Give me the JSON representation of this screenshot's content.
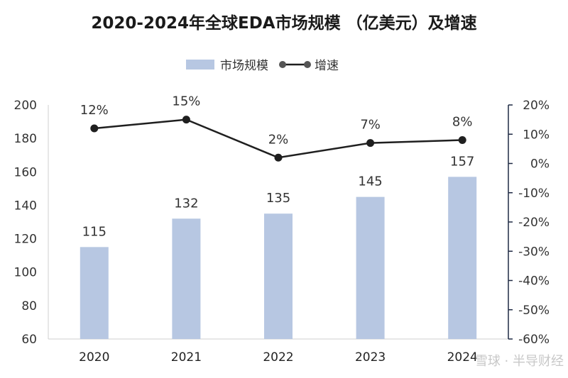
{
  "chart_data": {
    "type": "bar",
    "title": "2020-2024年全球EDA市场规模 （亿美元）及增速",
    "categories": [
      "2020",
      "2021",
      "2022",
      "2023",
      "2024"
    ],
    "series": [
      {
        "name": "市场规模",
        "type": "bar",
        "axis": "left",
        "values": [
          115,
          132,
          135,
          145,
          157
        ],
        "labels": [
          "115",
          "132",
          "135",
          "145",
          "157"
        ]
      },
      {
        "name": "增速",
        "type": "line",
        "axis": "right",
        "values": [
          12,
          15,
          2,
          7,
          8
        ],
        "labels": [
          "12%",
          "15%",
          "2%",
          "7%",
          "8%"
        ]
      }
    ],
    "y_left": {
      "range": [
        60,
        200
      ],
      "ticks": [
        60,
        80,
        100,
        120,
        140,
        160,
        180,
        200
      ]
    },
    "y_right": {
      "range": [
        -60,
        20
      ],
      "unit": "%",
      "ticks": [
        "-60%",
        "-50%",
        "-40%",
        "-30%",
        "-20%",
        "-10%",
        "0%",
        "10%",
        "20%"
      ],
      "tick_values": [
        -60,
        -50,
        -40,
        -30,
        -20,
        -10,
        0,
        10,
        20
      ]
    },
    "legend": {
      "placement": "top-center"
    },
    "grid": false,
    "colors": {
      "bar": "#b7c7e2",
      "line": "#1f1f1f",
      "marker": "#1f1f1f",
      "axis": "#1f2a44"
    }
  },
  "watermark": {
    "text": "雪球 · 半导财经"
  }
}
